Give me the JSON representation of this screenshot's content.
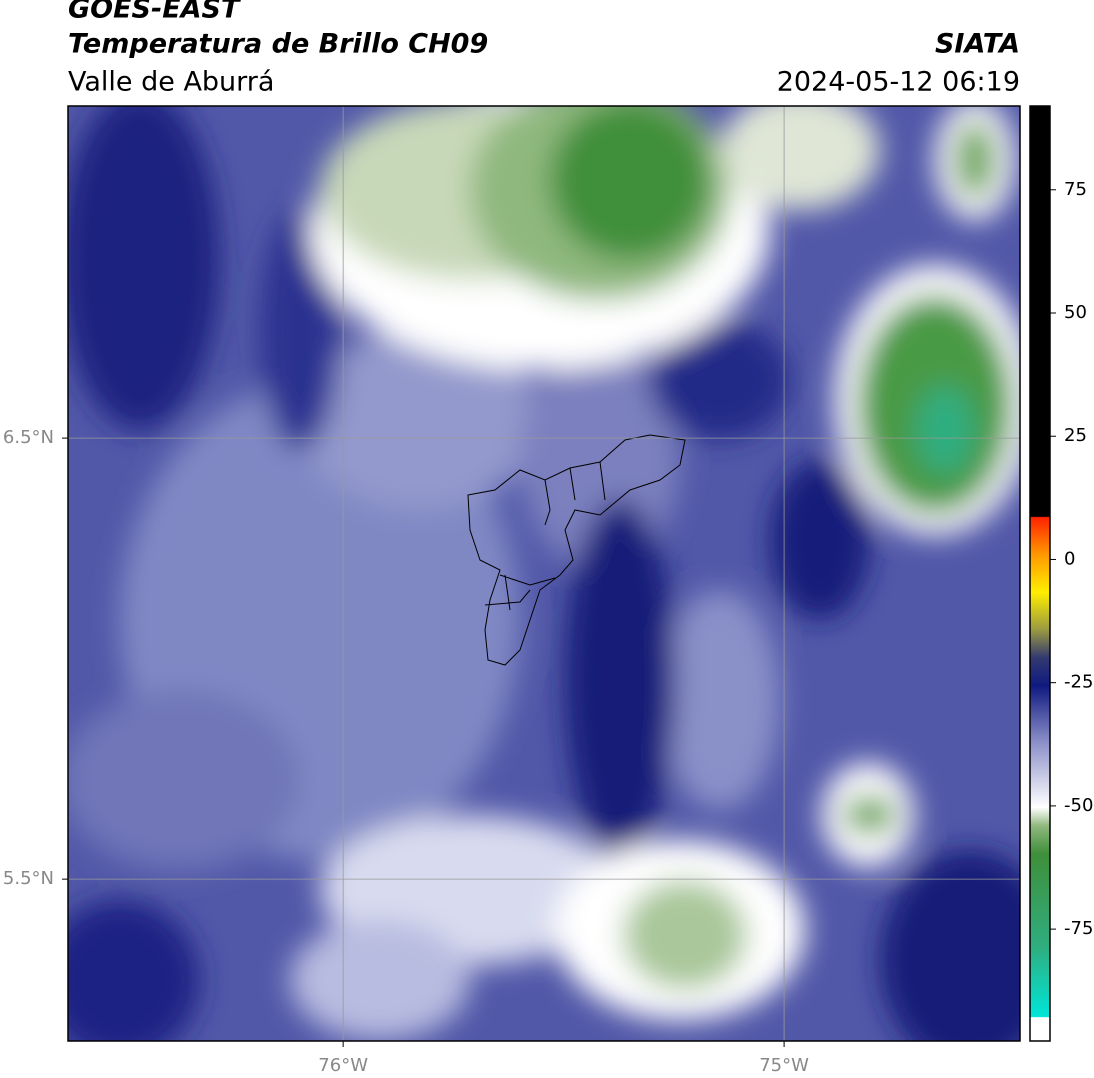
{
  "header": {
    "title": "GOES-EAST",
    "subtitle": "Temperatura de Brillo CH09",
    "region": "Valle de Aburrá",
    "source": "SIATA",
    "datetime": "2024-05-12 06:19"
  },
  "map": {
    "lonlim": [
      -76.624,
      -74.465
    ],
    "latlim": [
      5.133,
      7.253
    ],
    "lonticks": [
      {
        "value": -76,
        "label": "76°W"
      },
      {
        "value": -75,
        "label": "75°W"
      }
    ],
    "latticks": [
      {
        "value": 6.5,
        "label": "6.5°N"
      },
      {
        "value": 5.5,
        "label": "5.5°N"
      }
    ],
    "grid": true
  },
  "colorbar": {
    "lim": [
      -97.7,
      92
    ],
    "ticks": [
      75,
      50,
      25,
      0,
      -25,
      -50,
      -75
    ]
  }
}
